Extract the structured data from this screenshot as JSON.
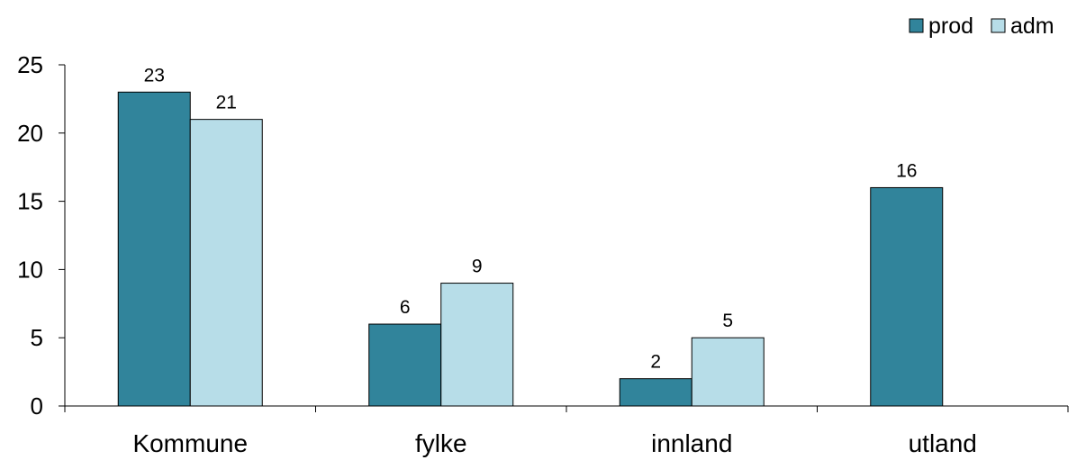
{
  "chart_data": {
    "type": "bar",
    "title": "",
    "xlabel": "",
    "ylabel": "",
    "categories": [
      "Kommune",
      "fylke",
      "innland",
      "utland"
    ],
    "series": [
      {
        "name": "prod",
        "color": "#31849B",
        "values": [
          23,
          6,
          2,
          16
        ]
      },
      {
        "name": "adm",
        "color": "#B7DDE8",
        "values": [
          21,
          9,
          5,
          null
        ]
      }
    ],
    "ylim": [
      0,
      25
    ],
    "yticks": [
      0,
      5,
      10,
      15,
      20,
      25
    ],
    "grid": false,
    "legend": "top-right"
  }
}
